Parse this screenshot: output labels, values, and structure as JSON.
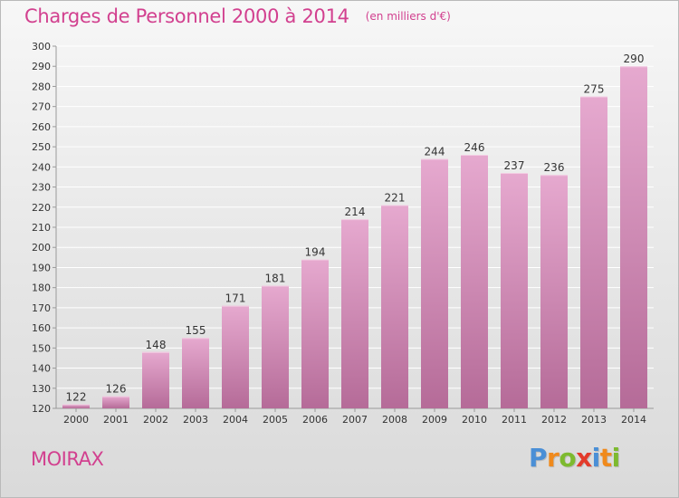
{
  "title": "Charges de Personnel 2000 à 2014",
  "subtitle": "(en milliers d'€)",
  "commune": "MOIRAX",
  "logo": {
    "letters": [
      "P",
      "r",
      "o",
      "x",
      "i",
      "t",
      "i"
    ],
    "colors": [
      "#4a8fd6",
      "#f08a1c",
      "#7dba2f",
      "#e33b2b",
      "#4a8fd6",
      "#f08a1c",
      "#7dba2f"
    ]
  },
  "colors": {
    "bar_top": "#e6a9cf",
    "bar_bottom": "#b56b98",
    "title": "#d2408f"
  },
  "chart_data": {
    "type": "bar",
    "categories": [
      "2000",
      "2001",
      "2002",
      "2003",
      "2004",
      "2005",
      "2006",
      "2007",
      "2008",
      "2009",
      "2010",
      "2011",
      "2012",
      "2013",
      "2014"
    ],
    "values": [
      122,
      126,
      148,
      155,
      171,
      181,
      194,
      214,
      221,
      244,
      246,
      237,
      236,
      275,
      290
    ],
    "data_labels": [
      "122",
      "126",
      "148",
      "155",
      "171",
      "181",
      "194",
      "214",
      "221",
      "244",
      "246",
      "237",
      "236",
      "275",
      "290"
    ],
    "yticks": [
      "120",
      "130",
      "140",
      "150",
      "160",
      "170",
      "180",
      "190",
      "200",
      "210",
      "220",
      "230",
      "240",
      "250",
      "260",
      "270",
      "280",
      "290",
      "300"
    ],
    "ylim": [
      120,
      300
    ],
    "grid": true
  }
}
